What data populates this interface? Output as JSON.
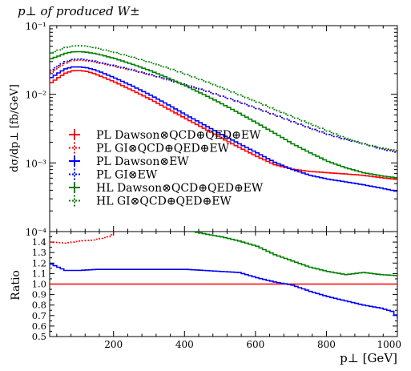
{
  "title": "p⊥ of produced W±",
  "legend_entries": [
    {
      "label": "PL Dawson⊗QCD⊕QED⊕EW",
      "color": "#ff0000",
      "dashed": false
    },
    {
      "label": "PL GI⊗QCD⊕QED⊕EW",
      "color": "#ff0000",
      "dashed": true
    },
    {
      "label": "PL Dawson⊗EW",
      "color": "#0000ff",
      "dashed": false
    },
    {
      "label": "PL GI⊗EW",
      "color": "#0000ff",
      "dashed": true
    },
    {
      "label": "HL Dawson⊗QCD⊕QED⊕EW",
      "color": "#008000",
      "dashed": false
    },
    {
      "label": "HL GI⊗QCD⊕QED⊕EW",
      "color": "#008000",
      "dashed": true
    }
  ],
  "chart_data": [
    {
      "type": "line",
      "panel": "main",
      "title": "p⊥ of produced W±",
      "ylabel": "dσ/dp⊥ [fb/GeV]",
      "xlabel": "",
      "xlim": [
        20,
        1000
      ],
      "ylim": [
        0.0001,
        0.1
      ],
      "yscale": "log",
      "yticks": [
        "10⁻¹",
        "10⁻²",
        "10⁻³",
        "10⁻⁴"
      ],
      "grid": false,
      "legend_position": "lower-left",
      "x": [
        20,
        40,
        60,
        80,
        100,
        120,
        140,
        160,
        200,
        250,
        300,
        350,
        400,
        450,
        500,
        550,
        600,
        650,
        700,
        750,
        800,
        850,
        900,
        950,
        1000
      ],
      "series": [
        {
          "name": "PL Dawson⊗QCD⊕QED⊕EW",
          "color": "#ff0000",
          "style": "solid",
          "values": [
            0.0148,
            0.0175,
            0.0203,
            0.022,
            0.0222,
            0.0215,
            0.0201,
            0.0183,
            0.015,
            0.0113,
            0.0084,
            0.0061,
            0.0044,
            0.0032,
            0.0023,
            0.00168,
            0.00124,
            0.00094,
            0.00081,
            0.00075,
            0.00072,
            0.00069,
            0.00066,
            0.00061,
            0.00057
          ]
        },
        {
          "name": "PL GI⊗QCD⊕QED⊕EW",
          "color": "#ff0000",
          "style": "dotted",
          "values": [
            0.021,
            0.0245,
            0.0285,
            0.031,
            0.0315,
            0.0308,
            0.0296,
            0.0281,
            0.0255,
            0.0222,
            0.0191,
            0.0162,
            0.0136,
            0.0114,
            0.0094,
            0.0077,
            0.0062,
            0.005,
            0.004,
            0.0032,
            0.0026,
            0.0022,
            0.0019,
            0.00165,
            0.00145
          ]
        },
        {
          "name": "PL Dawson⊗EW",
          "color": "#0000ff",
          "style": "solid",
          "values": [
            0.0175,
            0.0205,
            0.0235,
            0.025,
            0.025,
            0.0243,
            0.0229,
            0.021,
            0.0172,
            0.0131,
            0.0097,
            0.007,
            0.005,
            0.0036,
            0.0026,
            0.0019,
            0.0014,
            0.00102,
            0.0008,
            0.00066,
            0.00058,
            0.00053,
            0.00048,
            0.00043,
            0.00038
          ]
        },
        {
          "name": "PL GI⊗EW",
          "color": "#0000ff",
          "style": "dotted",
          "values": [
            0.0225,
            0.0262,
            0.03,
            0.0322,
            0.0326,
            0.0318,
            0.0305,
            0.0288,
            0.026,
            0.0226,
            0.0193,
            0.0163,
            0.0137,
            0.0115,
            0.0094,
            0.0077,
            0.0062,
            0.005,
            0.004,
            0.0032,
            0.0026,
            0.0022,
            0.0019,
            0.0016,
            0.0014
          ]
        },
        {
          "name": "HL Dawson⊗QCD⊕QED⊕EW",
          "color": "#008000",
          "style": "solid",
          "values": [
            0.033,
            0.036,
            0.0395,
            0.0415,
            0.0418,
            0.041,
            0.0395,
            0.0375,
            0.033,
            0.0272,
            0.022,
            0.0172,
            0.0132,
            0.0099,
            0.0073,
            0.0053,
            0.0038,
            0.0027,
            0.0019,
            0.0014,
            0.00105,
            0.00085,
            0.00072,
            0.00065,
            0.0006
          ]
        },
        {
          "name": "HL GI⊗QCD⊕QED⊕EW",
          "color": "#008000",
          "style": "dotted",
          "values": [
            0.04,
            0.044,
            0.048,
            0.0505,
            0.051,
            0.05,
            0.048,
            0.0455,
            0.0405,
            0.0345,
            0.029,
            0.024,
            0.0195,
            0.0157,
            0.0125,
            0.0098,
            0.0077,
            0.006,
            0.0047,
            0.0037,
            0.0029,
            0.0023,
            0.0019,
            0.00165,
            0.0015
          ]
        }
      ]
    },
    {
      "type": "line",
      "panel": "ratio",
      "ylabel": "Ratio",
      "xlabel": "p⊥ [GeV]",
      "xlim": [
        20,
        1000
      ],
      "ylim": [
        0.5,
        1.5
      ],
      "xticks": [
        200,
        400,
        600,
        800,
        1000
      ],
      "yticks": [
        0.5,
        0.6,
        0.7,
        0.8,
        0.9,
        1.0,
        1.1,
        1.2,
        1.3,
        1.4
      ],
      "grid": false,
      "series": [
        {
          "name": "PL Dawson⊗QCD⊕QED⊕EW",
          "color": "#ff0000",
          "style": "solid",
          "x": [
            20,
            1000
          ],
          "values": [
            1.0,
            1.0
          ]
        },
        {
          "name": "PL GI⊗QCD⊕QED⊕EW",
          "color": "#ff0000",
          "style": "dotted",
          "x": [
            20,
            60,
            100,
            140,
            180,
            205
          ],
          "values": [
            1.4,
            1.39,
            1.41,
            1.42,
            1.45,
            1.5
          ]
        },
        {
          "name": "PL Dawson⊗EW",
          "color": "#0000ff",
          "style": "solid",
          "x": [
            20,
            40,
            60,
            100,
            150,
            200,
            300,
            400,
            500,
            550,
            600,
            650,
            700,
            750,
            800,
            850,
            900,
            950,
            980,
            1000
          ],
          "values": [
            1.19,
            1.16,
            1.13,
            1.13,
            1.14,
            1.14,
            1.14,
            1.14,
            1.12,
            1.11,
            1.06,
            1.02,
            0.99,
            0.93,
            0.88,
            0.84,
            0.8,
            0.77,
            0.74,
            0.67
          ]
        },
        {
          "name": "HL Dawson⊗QCD⊕QED⊕EW",
          "color": "#008000",
          "style": "solid",
          "x": [
            420,
            450,
            500,
            550,
            600,
            650,
            700,
            750,
            800,
            850,
            900,
            950,
            1000
          ],
          "values": [
            1.5,
            1.48,
            1.45,
            1.41,
            1.36,
            1.28,
            1.22,
            1.16,
            1.12,
            1.09,
            1.11,
            1.09,
            1.08
          ]
        }
      ]
    }
  ]
}
